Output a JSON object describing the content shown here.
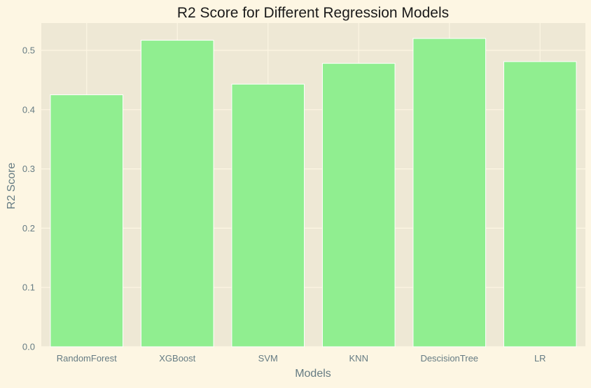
{
  "chart_data": {
    "type": "bar",
    "title": "R2 Score for Different Regression Models",
    "xlabel": "Models",
    "ylabel": "R2 Score",
    "categories": [
      "RandomForest",
      "XGBoost",
      "SVM",
      "KNN",
      "DescisionTree",
      "LR"
    ],
    "values": [
      0.425,
      0.517,
      0.443,
      0.478,
      0.52,
      0.481
    ],
    "ylim": [
      0,
      0.546
    ],
    "yticks": [
      "0.0",
      "0.1",
      "0.2",
      "0.3",
      "0.4",
      "0.5"
    ],
    "grid": true,
    "legend": "none",
    "colors": {
      "bar": "#90ee90",
      "plot_background": "#eee8d5",
      "figure_background": "#fdf6e3",
      "grid": "#fdf6e3",
      "tick_text": "#657b83"
    }
  }
}
